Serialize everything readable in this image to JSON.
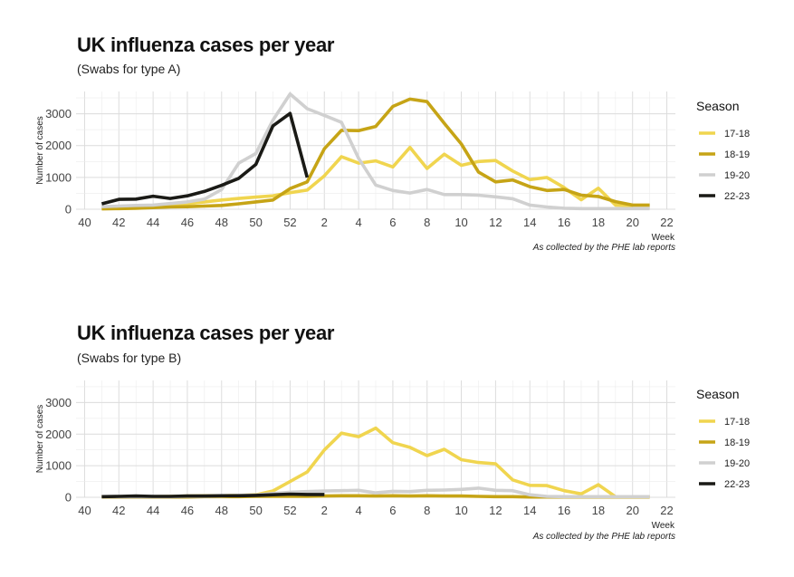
{
  "chart_data": [
    {
      "type": "line",
      "title": "UK influenza cases per year",
      "subtitle": "(Swabs for type A)",
      "ylabel": "Number of cases",
      "xlabel": "Week",
      "caption": "As collected by the PHE lab reports",
      "categories": [
        40,
        41,
        42,
        43,
        44,
        45,
        46,
        47,
        48,
        49,
        50,
        51,
        52,
        1,
        2,
        3,
        4,
        5,
        6,
        7,
        8,
        9,
        10,
        11,
        12,
        13,
        14,
        15,
        16,
        17,
        18,
        19,
        20,
        21,
        22
      ],
      "x_tick_labels": [
        "40",
        "42",
        "44",
        "46",
        "48",
        "50",
        "52",
        "2",
        "4",
        "6",
        "8",
        "10",
        "12",
        "14",
        "16",
        "18",
        "20",
        "22"
      ],
      "y_ticks": [
        0,
        1000,
        2000,
        3000
      ],
      "ylim": [
        0,
        3700
      ],
      "grid": true,
      "legend": {
        "title": "Season",
        "position": "right"
      },
      "series": [
        {
          "name": "17-18",
          "color": "#f0d54f",
          "values": [
            null,
            30,
            40,
            60,
            80,
            110,
            170,
            230,
            290,
            340,
            380,
            420,
            520,
            600,
            1050,
            1650,
            1450,
            1520,
            1330,
            1940,
            1280,
            1730,
            1380,
            1500,
            1530,
            1200,
            930,
            1000,
            680,
            300,
            660,
            130,
            120,
            null,
            null
          ]
        },
        {
          "name": "18-19",
          "color": "#c6a416",
          "values": [
            null,
            10,
            20,
            30,
            50,
            70,
            80,
            100,
            120,
            170,
            230,
            290,
            650,
            860,
            1900,
            2480,
            2470,
            2600,
            3230,
            3460,
            3380,
            2700,
            2050,
            1170,
            860,
            920,
            710,
            590,
            620,
            440,
            400,
            240,
            130,
            130,
            null
          ]
        },
        {
          "name": "19-20",
          "color": "#d0d0d0",
          "values": [
            null,
            80,
            100,
            120,
            130,
            180,
            230,
            320,
            620,
            1450,
            1750,
            2800,
            3620,
            3160,
            2950,
            2730,
            1600,
            760,
            590,
            510,
            620,
            460,
            460,
            440,
            390,
            330,
            130,
            70,
            30,
            20,
            20,
            20,
            20,
            20,
            null
          ]
        },
        {
          "name": "22-23",
          "color": "#1a1a16",
          "values": [
            null,
            170,
            310,
            320,
            410,
            340,
            420,
            560,
            750,
            970,
            1410,
            2620,
            3010,
            1000,
            null,
            null,
            null,
            null,
            null,
            null,
            null,
            null,
            null,
            null,
            null,
            null,
            null,
            null,
            null,
            null,
            null,
            null,
            null,
            null,
            null
          ]
        }
      ]
    },
    {
      "type": "line",
      "title": "UK influenza cases per year",
      "subtitle": "(Swabs for type B)",
      "ylabel": "Number of cases",
      "xlabel": "Week",
      "caption": "As collected by the PHE lab reports",
      "categories": [
        40,
        41,
        42,
        43,
        44,
        45,
        46,
        47,
        48,
        49,
        50,
        51,
        52,
        1,
        2,
        3,
        4,
        5,
        6,
        7,
        8,
        9,
        10,
        11,
        12,
        13,
        14,
        15,
        16,
        17,
        18,
        19,
        20,
        21,
        22
      ],
      "x_tick_labels": [
        "40",
        "42",
        "44",
        "46",
        "48",
        "50",
        "52",
        "2",
        "4",
        "6",
        "8",
        "10",
        "12",
        "14",
        "16",
        "18",
        "20",
        "22"
      ],
      "y_ticks": [
        0,
        1000,
        2000,
        3000
      ],
      "ylim": [
        0,
        3700
      ],
      "grid": true,
      "legend": {
        "title": "Season",
        "position": "right"
      },
      "series": [
        {
          "name": "17-18",
          "color": "#f0d54f",
          "values": [
            null,
            10,
            20,
            20,
            20,
            30,
            40,
            50,
            50,
            60,
            80,
            200,
            500,
            800,
            1500,
            2030,
            1920,
            2190,
            1730,
            1580,
            1320,
            1520,
            1190,
            1100,
            1060,
            550,
            380,
            370,
            210,
            110,
            400,
            20,
            20,
            20,
            null
          ]
        },
        {
          "name": "18-19",
          "color": "#c6a416",
          "values": [
            null,
            10,
            10,
            10,
            10,
            10,
            10,
            20,
            20,
            20,
            30,
            30,
            30,
            30,
            40,
            50,
            50,
            40,
            50,
            40,
            50,
            40,
            40,
            30,
            20,
            20,
            10,
            10,
            10,
            10,
            10,
            10,
            10,
            10,
            null
          ]
        },
        {
          "name": "19-20",
          "color": "#d0d0d0",
          "values": [
            null,
            20,
            20,
            20,
            20,
            20,
            30,
            30,
            40,
            60,
            70,
            120,
            160,
            180,
            200,
            210,
            220,
            140,
            190,
            180,
            220,
            230,
            250,
            290,
            220,
            210,
            80,
            30,
            20,
            20,
            20,
            20,
            20,
            20,
            null
          ]
        },
        {
          "name": "22-23",
          "color": "#1a1a16",
          "values": [
            null,
            20,
            30,
            40,
            30,
            30,
            40,
            40,
            50,
            50,
            60,
            80,
            100,
            90,
            90,
            null,
            null,
            null,
            null,
            null,
            null,
            null,
            null,
            null,
            null,
            null,
            null,
            null,
            null,
            null,
            null,
            null,
            null,
            null,
            null
          ]
        }
      ]
    }
  ]
}
